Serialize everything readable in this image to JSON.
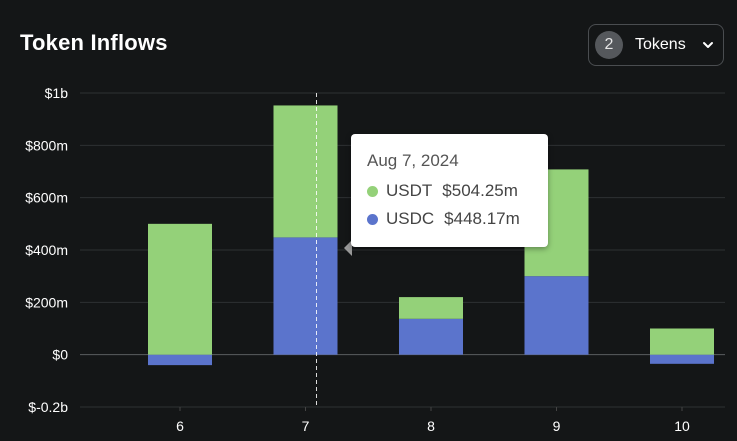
{
  "header": {
    "title": "Token Inflows",
    "token_count": "2",
    "token_label": "Tokens"
  },
  "colors": {
    "usdt": "#94d179",
    "usdc": "#5b74cc",
    "grid": "#2e3133",
    "background": "#141617"
  },
  "tooltip": {
    "date": "Aug 7, 2024",
    "rows": [
      {
        "name": "USDT",
        "value": "$504.25m",
        "color": "#94d179"
      },
      {
        "name": "USDC",
        "value": "$448.17m",
        "color": "#5b74cc"
      }
    ]
  },
  "chart_data": {
    "type": "bar",
    "stacked": true,
    "title": "Token Inflows",
    "categories": [
      "6",
      "7",
      "8",
      "9",
      "10"
    ],
    "series": [
      {
        "name": "USDC",
        "values": [
          -40,
          448.17,
          137,
          300,
          -35
        ],
        "color": "#5b74cc"
      },
      {
        "name": "USDT",
        "values": [
          500,
          504.25,
          83,
          408,
          100
        ],
        "color": "#94d179"
      }
    ],
    "ylim": [
      -200,
      1000
    ],
    "yticks": [
      {
        "value": 1000,
        "label": "$1b"
      },
      {
        "value": 800,
        "label": "$800m"
      },
      {
        "value": 600,
        "label": "$600m"
      },
      {
        "value": 400,
        "label": "$400m"
      },
      {
        "value": 200,
        "label": "$200m"
      },
      {
        "value": 0,
        "label": "$0"
      },
      {
        "value": -200,
        "label": "$-0.2b"
      }
    ],
    "grid": true,
    "hover_category": "7"
  }
}
